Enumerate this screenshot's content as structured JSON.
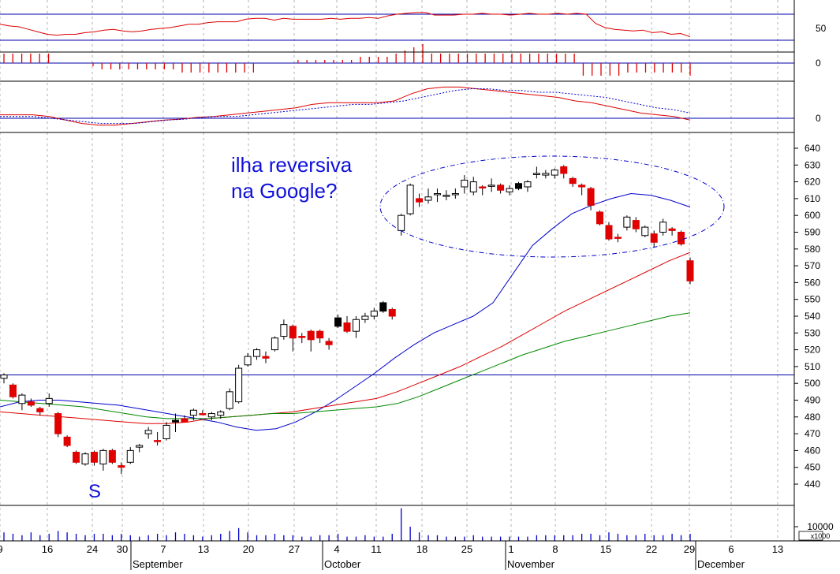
{
  "colors": {
    "background": "#ffffff",
    "frame": "#000000",
    "guide": "#0000aa",
    "grid": "#b0b0b0",
    "up": "#ffffff",
    "down": "#e00000",
    "neutral": "#000000",
    "ma_short": "#0000cc",
    "ma_mid": "#dd0000",
    "ma_long": "#008800",
    "annotation": "#1010dd"
  },
  "chart_data": [
    {
      "panel": "rsi",
      "type": "line",
      "ylim": [
        0,
        100
      ],
      "tick_labels": [
        "50"
      ],
      "ticks": [
        50
      ],
      "guides": [
        30,
        70
      ],
      "series": [
        {
          "color": "#dd0000",
          "values": [
            64,
            62,
            61,
            58,
            55,
            52,
            51,
            52,
            52,
            54,
            55,
            57,
            58,
            56,
            55,
            56,
            58,
            59,
            60,
            62,
            64,
            64,
            66,
            67,
            67,
            67,
            70,
            71,
            71,
            69,
            71,
            70,
            70,
            70,
            70,
            71,
            70,
            71,
            71,
            72,
            71,
            74,
            76,
            77,
            78,
            78,
            75,
            75,
            75,
            76,
            76,
            77,
            76,
            76,
            75,
            76,
            77,
            76,
            76,
            77,
            76,
            77,
            76,
            65,
            60,
            58,
            57,
            56,
            57,
            54,
            55,
            52,
            53,
            49
          ]
        }
      ]
    },
    {
      "panel": "momentum",
      "type": "bar",
      "ylim": [
        -10,
        10
      ],
      "tick_labels": [
        "0"
      ],
      "ticks": [
        0
      ],
      "values": [
        3,
        3,
        3,
        3,
        3,
        3,
        0,
        0,
        0,
        0,
        -1,
        -2,
        -2,
        -2,
        -2,
        -2,
        -2,
        -2,
        -2,
        -2,
        -3,
        -3,
        -3,
        -3,
        -3,
        -3,
        -3,
        -3,
        -3,
        0,
        0,
        0,
        0,
        1,
        1,
        1,
        1,
        1,
        1,
        1,
        2,
        2,
        2,
        2,
        3,
        4,
        5,
        6,
        3,
        3,
        3,
        3,
        3,
        3,
        3,
        3,
        3,
        3,
        3,
        3,
        3,
        3,
        3,
        3,
        3,
        -4,
        -4,
        -4,
        -4,
        -4,
        -3,
        -3,
        -3,
        -3,
        -3,
        -3,
        -3,
        -4
      ]
    },
    {
      "panel": "macd",
      "type": "line",
      "ylim": [
        -6,
        30
      ],
      "tick_labels": [
        "0"
      ],
      "ticks": [
        0
      ],
      "series": [
        {
          "color": "#dd0000",
          "values": [
            2,
            2,
            2,
            1,
            -1,
            -3,
            -4,
            -4,
            -3,
            -2,
            -1,
            -0.5,
            0.5,
            1,
            2,
            3,
            4,
            5,
            6,
            8,
            9,
            9,
            9,
            9,
            10,
            14,
            17,
            18,
            18,
            17,
            16,
            15,
            14,
            13,
            12,
            10,
            9,
            7,
            5,
            3,
            2,
            1,
            -1
          ]
        },
        {
          "color": "#0000cc",
          "values": [
            1,
            1,
            1,
            0,
            -1,
            -2,
            -3,
            -3,
            -3,
            -2,
            -1,
            -0.5,
            0.5,
            1,
            1,
            2,
            3,
            4,
            5,
            6,
            7,
            8,
            8,
            9,
            10,
            12,
            14,
            16,
            17,
            17,
            16,
            16,
            15,
            15,
            14,
            13,
            12,
            10,
            8,
            6,
            5,
            3
          ]
        }
      ]
    },
    {
      "panel": "price",
      "type": "candlestick",
      "ylim": [
        430,
        645
      ],
      "ticks": [
        440,
        450,
        460,
        470,
        480,
        490,
        500,
        510,
        520,
        530,
        540,
        550,
        560,
        570,
        580,
        590,
        600,
        610,
        620,
        630,
        640
      ],
      "tick_labels": [
        "440",
        "450",
        "460",
        "470",
        "480",
        "490",
        "500",
        "510",
        "520",
        "530",
        "540",
        "550",
        "560",
        "570",
        "580",
        "590",
        "600",
        "610",
        "620",
        "630",
        "640"
      ],
      "guides": [
        505
      ],
      "x_tick_labels": [
        "9",
        "16",
        "24",
        "30",
        "7",
        "13",
        "20",
        "27",
        "4",
        "11",
        "18",
        "25",
        "1",
        "8",
        "15",
        "22",
        "29",
        "6",
        "13"
      ],
      "month_labels": [
        "September",
        "October",
        "November",
        "December"
      ],
      "candles": [
        {
          "o": 503,
          "h": 506,
          "l": 500,
          "c": 505,
          "t": "u"
        },
        {
          "o": 499,
          "h": 500,
          "l": 491,
          "c": 492,
          "t": "d"
        },
        {
          "o": 488,
          "h": 494,
          "l": 484,
          "c": 493,
          "t": "u"
        },
        {
          "o": 489,
          "h": 491,
          "l": 486,
          "c": 487,
          "t": "d"
        },
        {
          "o": 485,
          "h": 486,
          "l": 481,
          "c": 483,
          "t": "d"
        },
        {
          "o": 488,
          "h": 494,
          "l": 486,
          "c": 491,
          "t": "u"
        },
        {
          "o": 482,
          "h": 483,
          "l": 468,
          "c": 470,
          "t": "d"
        },
        {
          "o": 468,
          "h": 469,
          "l": 462,
          "c": 463,
          "t": "d"
        },
        {
          "o": 459,
          "h": 460,
          "l": 452,
          "c": 453,
          "t": "d"
        },
        {
          "o": 452,
          "h": 459,
          "l": 451,
          "c": 458,
          "t": "u"
        },
        {
          "o": 459,
          "h": 460,
          "l": 451,
          "c": 453,
          "t": "d"
        },
        {
          "o": 452,
          "h": 461,
          "l": 448,
          "c": 460,
          "t": "u"
        },
        {
          "o": 460,
          "h": 461,
          "l": 452,
          "c": 453,
          "t": "d"
        },
        {
          "o": 451,
          "h": 453,
          "l": 446,
          "c": 450,
          "t": "d"
        },
        {
          "o": 453,
          "h": 462,
          "l": 452,
          "c": 460,
          "t": "u"
        },
        {
          "o": 462,
          "h": 464,
          "l": 459,
          "c": 463,
          "t": "u"
        },
        {
          "o": 470,
          "h": 474,
          "l": 467,
          "c": 472,
          "t": "u"
        },
        {
          "o": 466,
          "h": 471,
          "l": 463,
          "c": 466,
          "t": "d"
        },
        {
          "o": 467,
          "h": 477,
          "l": 466,
          "c": 475,
          "t": "u"
        },
        {
          "o": 477,
          "h": 482,
          "l": 471,
          "c": 478,
          "t": "n"
        },
        {
          "o": 479,
          "h": 481,
          "l": 477,
          "c": 477,
          "t": "d"
        },
        {
          "o": 481,
          "h": 485,
          "l": 478,
          "c": 484,
          "t": "u"
        },
        {
          "o": 482,
          "h": 484,
          "l": 481,
          "c": 482,
          "t": "d"
        },
        {
          "o": 480,
          "h": 483,
          "l": 478,
          "c": 482,
          "t": "u"
        },
        {
          "o": 481,
          "h": 484,
          "l": 479,
          "c": 483,
          "t": "u"
        },
        {
          "o": 485,
          "h": 497,
          "l": 484,
          "c": 495,
          "t": "u"
        },
        {
          "o": 489,
          "h": 511,
          "l": 488,
          "c": 509,
          "t": "u"
        },
        {
          "o": 511,
          "h": 518,
          "l": 510,
          "c": 516,
          "t": "u"
        },
        {
          "o": 516,
          "h": 521,
          "l": 514,
          "c": 520,
          "t": "u"
        },
        {
          "o": 515,
          "h": 519,
          "l": 512,
          "c": 516,
          "t": "d"
        },
        {
          "o": 520,
          "h": 528,
          "l": 519,
          "c": 527,
          "t": "u"
        },
        {
          "o": 528,
          "h": 538,
          "l": 526,
          "c": 535,
          "t": "u"
        },
        {
          "o": 534,
          "h": 535,
          "l": 519,
          "c": 527,
          "t": "d"
        },
        {
          "o": 528,
          "h": 530,
          "l": 524,
          "c": 528,
          "t": "d"
        },
        {
          "o": 531,
          "h": 532,
          "l": 519,
          "c": 526,
          "t": "d"
        },
        {
          "o": 531,
          "h": 532,
          "l": 524,
          "c": 527,
          "t": "d"
        },
        {
          "o": 525,
          "h": 527,
          "l": 520,
          "c": 523,
          "t": "d"
        },
        {
          "o": 539,
          "h": 541,
          "l": 533,
          "c": 534,
          "t": "n"
        },
        {
          "o": 536,
          "h": 540,
          "l": 530,
          "c": 531,
          "t": "d"
        },
        {
          "o": 531,
          "h": 540,
          "l": 527,
          "c": 538,
          "t": "u"
        },
        {
          "o": 538,
          "h": 542,
          "l": 536,
          "c": 540,
          "t": "u"
        },
        {
          "o": 540,
          "h": 545,
          "l": 538,
          "c": 543,
          "t": "u"
        },
        {
          "o": 548,
          "h": 549,
          "l": 542,
          "c": 543,
          "t": "n"
        },
        {
          "o": 544,
          "h": 545,
          "l": 538,
          "c": 540,
          "t": "d"
        },
        {
          "o": 591,
          "h": 601,
          "l": 588,
          "c": 600,
          "t": "u"
        },
        {
          "o": 601,
          "h": 619,
          "l": 600,
          "c": 618,
          "t": "u"
        },
        {
          "o": 610,
          "h": 613,
          "l": 605,
          "c": 608,
          "t": "d"
        },
        {
          "o": 609,
          "h": 616,
          "l": 607,
          "c": 611,
          "t": "u"
        },
        {
          "o": 613,
          "h": 616,
          "l": 608,
          "c": 613,
          "t": "u"
        },
        {
          "o": 612,
          "h": 615,
          "l": 609,
          "c": 612,
          "t": "u"
        },
        {
          "o": 613,
          "h": 616,
          "l": 610,
          "c": 613,
          "t": "u"
        },
        {
          "o": 617,
          "h": 624,
          "l": 613,
          "c": 621,
          "t": "u"
        },
        {
          "o": 614,
          "h": 623,
          "l": 612,
          "c": 620,
          "t": "u"
        },
        {
          "o": 617,
          "h": 618,
          "l": 612,
          "c": 617,
          "t": "d"
        },
        {
          "o": 618,
          "h": 622,
          "l": 614,
          "c": 618,
          "t": "u"
        },
        {
          "o": 618,
          "h": 619,
          "l": 613,
          "c": 615,
          "t": "d"
        },
        {
          "o": 614,
          "h": 618,
          "l": 612,
          "c": 616,
          "t": "u"
        },
        {
          "o": 619,
          "h": 620,
          "l": 615,
          "c": 616,
          "t": "n"
        },
        {
          "o": 617,
          "h": 621,
          "l": 614,
          "c": 620,
          "t": "u"
        },
        {
          "o": 625,
          "h": 629,
          "l": 622,
          "c": 625,
          "t": "u"
        },
        {
          "o": 624,
          "h": 627,
          "l": 622,
          "c": 625,
          "t": "u"
        },
        {
          "o": 624,
          "h": 628,
          "l": 622,
          "c": 627,
          "t": "u"
        },
        {
          "o": 629,
          "h": 630,
          "l": 622,
          "c": 625,
          "t": "d"
        },
        {
          "o": 622,
          "h": 623,
          "l": 617,
          "c": 619,
          "t": "d"
        },
        {
          "o": 617,
          "h": 619,
          "l": 612,
          "c": 618,
          "t": "d"
        },
        {
          "o": 616,
          "h": 617,
          "l": 603,
          "c": 606,
          "t": "d"
        },
        {
          "o": 602,
          "h": 603,
          "l": 594,
          "c": 595,
          "t": "d"
        },
        {
          "o": 594,
          "h": 596,
          "l": 585,
          "c": 586,
          "t": "d"
        },
        {
          "o": 587,
          "h": 589,
          "l": 584,
          "c": 587,
          "t": "d"
        },
        {
          "o": 593,
          "h": 600,
          "l": 591,
          "c": 599,
          "t": "u"
        },
        {
          "o": 597,
          "h": 599,
          "l": 590,
          "c": 592,
          "t": "d"
        },
        {
          "o": 588,
          "h": 594,
          "l": 587,
          "c": 593,
          "t": "u"
        },
        {
          "o": 589,
          "h": 591,
          "l": 581,
          "c": 584,
          "t": "d"
        },
        {
          "o": 590,
          "h": 598,
          "l": 588,
          "c": 596,
          "t": "u"
        },
        {
          "o": 592,
          "h": 593,
          "l": 588,
          "c": 591,
          "t": "d"
        },
        {
          "o": 590,
          "h": 591,
          "l": 582,
          "c": 583,
          "t": "d"
        },
        {
          "o": 573,
          "h": 575,
          "l": 559,
          "c": 561,
          "t": "d"
        }
      ],
      "moving_averages": [
        {
          "color": "#0000cc",
          "values": [
            486,
            489,
            490,
            490,
            489,
            488,
            487,
            485,
            483,
            481,
            479,
            477,
            474,
            472,
            473,
            477,
            483,
            490,
            498,
            506,
            515,
            523,
            530,
            535,
            540,
            548,
            565,
            582,
            592,
            601,
            606,
            610,
            613,
            612,
            609,
            605
          ]
        },
        {
          "color": "#dd0000",
          "values": [
            483,
            482,
            481,
            480,
            479,
            478,
            477,
            476,
            476,
            477,
            479,
            480,
            481,
            482,
            483,
            485,
            487,
            489,
            491,
            495,
            500,
            505,
            510,
            516,
            522,
            529,
            536,
            543,
            549,
            555,
            561,
            567,
            573,
            578
          ]
        },
        {
          "color": "#008800",
          "values": [
            490,
            489,
            488,
            487,
            486,
            484,
            482,
            480,
            479,
            479,
            479,
            480,
            481,
            482,
            482,
            483,
            484,
            485,
            486,
            488,
            492,
            497,
            502,
            507,
            512,
            517,
            521,
            525,
            528,
            531,
            534,
            537,
            540,
            542
          ]
        }
      ]
    },
    {
      "panel": "volume",
      "type": "bar",
      "ylim": [
        0,
        25000
      ],
      "ticks": [
        10000
      ],
      "tick_labels": [
        "10000"
      ],
      "unit_label": "x1000",
      "values": [
        6000,
        5000,
        4000,
        6000,
        4000,
        5000,
        7000,
        6000,
        5000,
        4000,
        5000,
        5000,
        4000,
        5000,
        4000,
        3000,
        4000,
        5000,
        4000,
        6000,
        5000,
        4000,
        3000,
        4000,
        5000,
        7000,
        9000,
        6000,
        4000,
        4000,
        5000,
        4000,
        4000,
        3000,
        3000,
        4000,
        4000,
        5000,
        3000,
        3000,
        4000,
        3000,
        3000,
        5000,
        23000,
        10000,
        6000,
        4000,
        4000,
        3000,
        3000,
        3000,
        4000,
        3000,
        3000,
        3000,
        3000,
        3000,
        3000,
        4000,
        4000,
        4000,
        4000,
        4000,
        5000,
        5000,
        4000,
        6000,
        5000,
        4000,
        4000,
        5000,
        4000,
        4000,
        5000,
        4000,
        5000
      ]
    }
  ],
  "annotations": {
    "title_line1": "ilha reversiva",
    "title_line2": "na Google?",
    "pattern_label": "S"
  }
}
